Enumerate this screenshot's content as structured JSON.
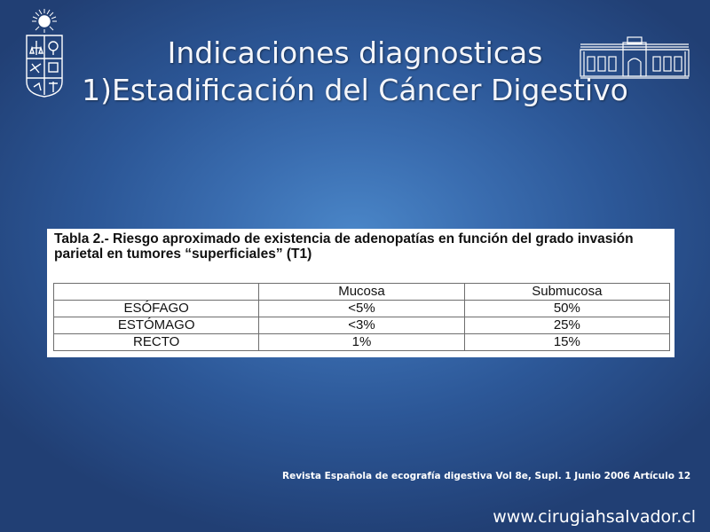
{
  "title": {
    "line1": "Indicaciones diagnosticas",
    "line2": "1)Estadificación del Cáncer Digestivo"
  },
  "logos": {
    "left": "university-seal-icon",
    "right": "building-facade-icon"
  },
  "table_image": {
    "caption": "Tabla 2.- Riesgo aproximado de existencia de adenopatías en función del grado invasión parietal en tumores “superficiales” (T1)",
    "headers": [
      "",
      "Mucosa",
      "Submucosa"
    ],
    "rows": [
      [
        "ESÓFAGO",
        "<5%",
        "50%"
      ],
      [
        "ESTÓMAGO",
        "<3%",
        "25%"
      ],
      [
        "RECTO",
        "1%",
        "15%"
      ]
    ]
  },
  "source": "Revista Española de ecografía digestiva Vol 8e, Supl. 1 Junio 2006 Artículo 12",
  "url": "www.cirugiahsalvador.cl",
  "colors": {
    "background_center": "#4a86c8",
    "background_edge": "#213f74",
    "text": "#ffffff"
  }
}
